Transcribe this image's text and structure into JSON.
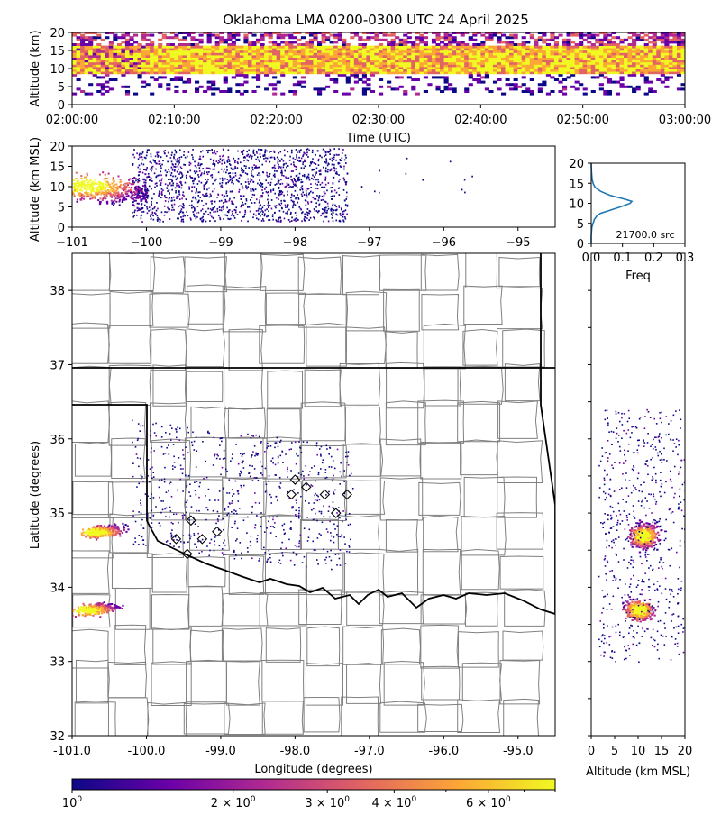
{
  "title": "Oklahoma LMA 0200-0300 UTC 24 April 2025",
  "colors": {
    "scale": [
      "#0d0887",
      "#6a00a8",
      "#b12a90",
      "#e16462",
      "#fca636",
      "#f0f921"
    ],
    "frequency_line": "#1f77b4",
    "state_border": "#000000",
    "county_border": "#808080"
  },
  "chart_data": [
    {
      "id": "time_height",
      "type": "heatmap",
      "xlabel": "Time (UTC)",
      "ylabel": "Altitude (km)",
      "xticks": [
        "02:00:00",
        "02:10:00",
        "02:20:00",
        "02:30:00",
        "02:40:00",
        "02:50:00",
        "03:00:00"
      ],
      "yticks": [
        "0",
        "5",
        "10",
        "15",
        "20"
      ],
      "ylim": [
        0,
        20
      ],
      "dense_band_km": [
        8,
        16
      ]
    },
    {
      "id": "lon_altitude",
      "type": "heatmap",
      "xlabel": "",
      "ylabel": "Altitude (km MSL)",
      "xticks": [
        "-101",
        "-100",
        "-99",
        "-98",
        "-97",
        "-96",
        "-95"
      ],
      "yticks": [
        "0",
        "5",
        "10",
        "15",
        "20"
      ],
      "xlim": [
        -101,
        -94.5
      ],
      "ylim": [
        0,
        20
      ]
    },
    {
      "id": "altitude_histogram",
      "type": "line",
      "xlabel": "Freq",
      "xticks": [
        "0.0",
        "0.1",
        "0.2",
        "0.3"
      ],
      "yticks": [
        "0",
        "5",
        "10",
        "15",
        "20"
      ],
      "xlim": [
        0,
        0.3
      ],
      "ylim": [
        0,
        20
      ],
      "annotation": "21700.0 src",
      "altitude": [
        0,
        2,
        4,
        5,
        6,
        7,
        7.5,
        8,
        9,
        10,
        10.5,
        11,
        12,
        13,
        14,
        15,
        16,
        18,
        20
      ],
      "frequency": [
        0,
        0,
        0.002,
        0.006,
        0.01,
        0.02,
        0.03,
        0.05,
        0.09,
        0.125,
        0.13,
        0.11,
        0.06,
        0.03,
        0.012,
        0.006,
        0.003,
        0.001,
        0
      ]
    },
    {
      "id": "plan_view",
      "type": "heatmap",
      "xlabel": "Longitude (degrees)",
      "ylabel": "Latitude (degrees)",
      "xticks": [
        "-101.0",
        "-100.0",
        "-99.0",
        "-98.0",
        "-97.0",
        "-96.0",
        "-95.0"
      ],
      "yticks": [
        "32",
        "33",
        "34",
        "35",
        "36",
        "37",
        "38"
      ],
      "xlim": [
        -101,
        -94.5
      ],
      "ylim": [
        32,
        38.5
      ],
      "hotspots": [
        {
          "lon": -100.7,
          "lat": 34.75
        },
        {
          "lon": -100.8,
          "lat": 33.7
        }
      ],
      "stations": [
        {
          "lon": -98.0,
          "lat": 35.45
        },
        {
          "lon": -97.85,
          "lat": 35.35
        },
        {
          "lon": -98.05,
          "lat": 35.25
        },
        {
          "lon": -97.6,
          "lat": 35.25
        },
        {
          "lon": -97.45,
          "lat": 35.0
        },
        {
          "lon": -97.3,
          "lat": 35.25
        },
        {
          "lon": -99.4,
          "lat": 34.9
        },
        {
          "lon": -99.25,
          "lat": 34.65
        },
        {
          "lon": -99.05,
          "lat": 34.75
        },
        {
          "lon": -99.45,
          "lat": 34.45
        },
        {
          "lon": -99.6,
          "lat": 34.65
        }
      ]
    },
    {
      "id": "altitude_latitude",
      "type": "heatmap",
      "xlabel": "Altitude (km MSL)",
      "xticks": [
        "0",
        "5",
        "10",
        "15",
        "20"
      ],
      "xlim": [
        0,
        20
      ],
      "ylim": [
        32,
        38.5
      ],
      "hotspots": [
        {
          "alt": 11,
          "lat": 34.7
        },
        {
          "alt": 10,
          "lat": 33.7
        }
      ]
    },
    {
      "id": "colorbar",
      "type": "colorbar",
      "scale": "log",
      "min": 1,
      "max": 8,
      "ticks": [
        {
          "value": 1,
          "base": "10",
          "exp": "0",
          "coef": ""
        },
        {
          "value": 2,
          "base": "10",
          "exp": "0",
          "coef": "2 × "
        },
        {
          "value": 3,
          "base": "10",
          "exp": "0",
          "coef": "3 × "
        },
        {
          "value": 4,
          "base": "10",
          "exp": "0",
          "coef": "4 × "
        },
        {
          "value": 6,
          "base": "10",
          "exp": "0",
          "coef": "6 × "
        }
      ]
    }
  ]
}
